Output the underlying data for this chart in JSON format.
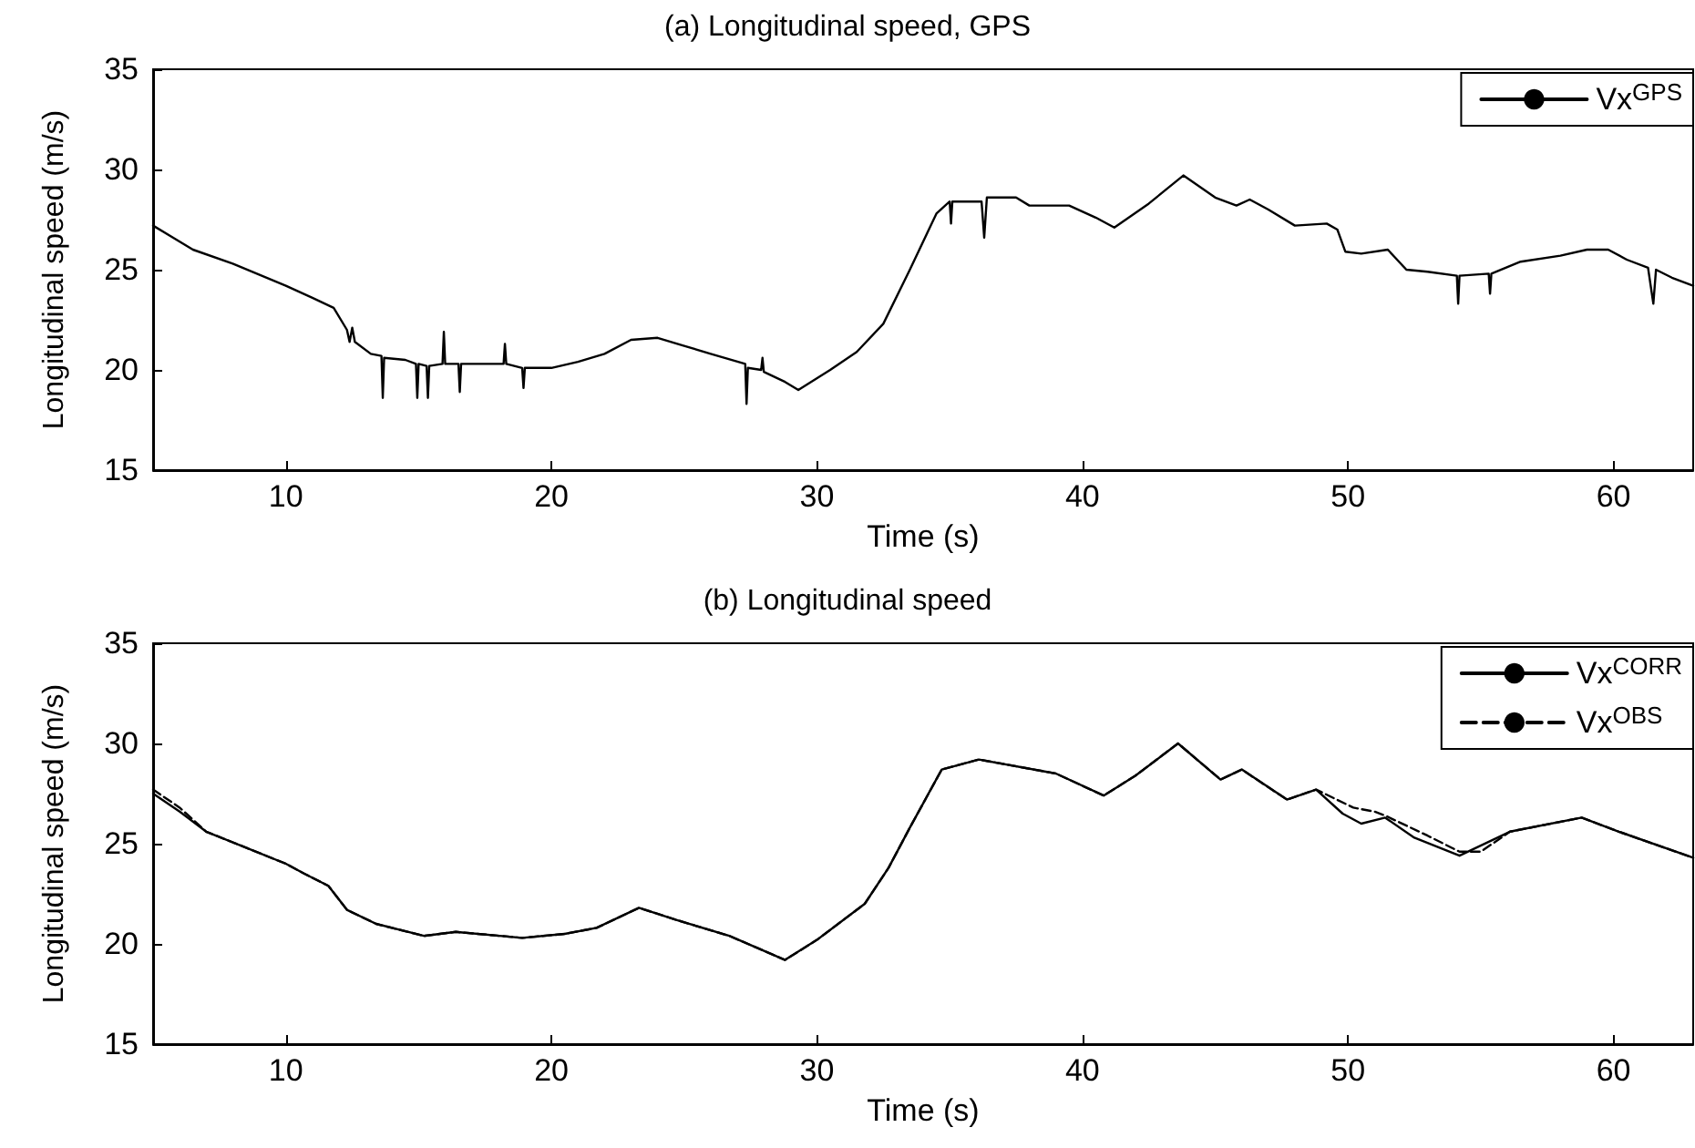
{
  "chart_data": [
    {
      "type": "line",
      "title": "(a) Longitudinal speed, GPS",
      "xlabel": "Time (s)",
      "ylabel": "Longitudinal speed (m/s)",
      "xlim": [
        5,
        63
      ],
      "xticks": [
        10,
        20,
        30,
        40,
        50,
        60
      ],
      "ylim": [
        15,
        35
      ],
      "yticks": [
        15,
        20,
        25,
        30,
        35
      ],
      "grid": false,
      "legend": "top right",
      "marker": "none",
      "series": [
        {
          "name": "Vx$^{GPS}$",
          "color": "#000000",
          "line_style": "solid",
          "x": [
            5.0,
            6.5,
            8,
            10,
            11,
            11.8,
            12.3,
            12.4,
            12.5,
            12.6,
            13.2,
            13.6,
            13.65,
            13.7,
            14.5,
            14.9,
            14.95,
            15.0,
            15.3,
            15.35,
            15.4,
            15.9,
            15.95,
            16.0,
            16.5,
            16.55,
            16.6,
            18.2,
            18.25,
            18.3,
            18.9,
            18.95,
            19.0,
            20,
            21,
            22,
            23,
            24,
            25,
            26,
            27.3,
            27.35,
            27.4,
            27.9,
            27.95,
            28.0,
            28.8,
            29.3,
            30.5,
            31.5,
            32.5,
            33.5,
            34.5,
            35.0,
            35.05,
            35.1,
            36.2,
            36.3,
            36.4,
            37.5,
            38,
            39.5,
            40.5,
            41.2,
            42.5,
            43.8,
            45,
            45.8,
            46.3,
            47,
            48,
            49.2,
            49.6,
            49.9,
            50.5,
            51.5,
            52.2,
            53,
            54.1,
            54.15,
            54.2,
            55.3,
            55.35,
            55.4,
            56.5,
            58,
            59,
            59.8,
            60.5,
            61.3,
            61.5,
            61.6,
            62.2,
            63.0
          ],
          "values": [
            27.2,
            26.0,
            25.3,
            24.2,
            23.6,
            23.1,
            22.0,
            21.4,
            22.1,
            21.4,
            20.8,
            20.7,
            18.6,
            20.6,
            20.5,
            20.3,
            18.6,
            20.3,
            20.2,
            18.6,
            20.2,
            20.3,
            21.9,
            20.3,
            20.3,
            18.9,
            20.3,
            20.3,
            21.3,
            20.3,
            20.1,
            19.1,
            20.1,
            20.1,
            20.4,
            20.8,
            21.5,
            21.6,
            21.2,
            20.8,
            20.3,
            18.3,
            20.1,
            20.0,
            20.6,
            19.9,
            19.4,
            19.0,
            20.0,
            20.9,
            22.3,
            25.0,
            27.8,
            28.4,
            27.3,
            28.4,
            28.4,
            26.6,
            28.6,
            28.6,
            28.2,
            28.2,
            27.6,
            27.1,
            28.3,
            29.7,
            28.6,
            28.2,
            28.5,
            28.0,
            27.2,
            27.3,
            27.0,
            25.9,
            25.8,
            26.0,
            25.0,
            24.9,
            24.7,
            23.3,
            24.7,
            24.8,
            23.8,
            24.8,
            25.4,
            25.7,
            26.0,
            26.0,
            25.5,
            25.1,
            23.3,
            25.0,
            24.6,
            24.2
          ]
        }
      ]
    },
    {
      "type": "line",
      "title": "(b) Longitudinal speed",
      "xlabel": "Time (s)",
      "ylabel": "Longitudinal speed (m/s)",
      "xlim": [
        5,
        63
      ],
      "xticks": [
        10,
        20,
        30,
        40,
        50,
        60
      ],
      "ylim": [
        15,
        35
      ],
      "yticks": [
        15,
        20,
        25,
        30,
        35
      ],
      "grid": false,
      "legend": "top right",
      "marker": "none",
      "series": [
        {
          "name": "Vx$^{CORR}$",
          "color": "#000000",
          "line_style": "solid",
          "x": [
            5,
            6,
            7,
            8.5,
            10,
            10.7,
            11.6,
            12.3,
            13.4,
            15.2,
            16.4,
            18.9,
            20.5,
            21.7,
            23.3,
            24.7,
            26.7,
            28.8,
            30.0,
            31.8,
            32.7,
            33.5,
            34.7,
            36.1,
            39.0,
            40.8,
            42.0,
            43.6,
            45.2,
            46.0,
            47.7,
            48.8,
            49.8,
            50.5,
            51.4,
            52.5,
            54.2,
            56.1,
            58.8,
            60.2,
            63.0
          ],
          "values": [
            27.5,
            26.6,
            25.6,
            24.8,
            24.0,
            23.5,
            22.9,
            21.7,
            21.0,
            20.4,
            20.6,
            20.3,
            20.5,
            20.8,
            21.8,
            21.2,
            20.4,
            19.2,
            20.2,
            22.0,
            23.8,
            25.8,
            28.7,
            29.2,
            28.5,
            27.4,
            28.4,
            30.0,
            28.2,
            28.7,
            27.2,
            27.7,
            26.5,
            26.0,
            26.3,
            25.3,
            24.4,
            25.6,
            26.3,
            25.6,
            24.3
          ]
        },
        {
          "name": "Vx$^{OBS}$",
          "color": "#000000",
          "line_style": "dashed",
          "x": [
            5,
            6,
            7,
            8.5,
            10,
            10.7,
            11.6,
            12.3,
            13.4,
            15.2,
            16.4,
            18.9,
            20.5,
            21.7,
            23.3,
            24.7,
            26.7,
            28.8,
            30.0,
            31.8,
            32.7,
            33.5,
            34.7,
            36.1,
            39.0,
            40.8,
            42.0,
            43.6,
            45.2,
            46.0,
            47.7,
            48.8,
            50.2,
            51.0,
            51.4,
            53.0,
            54.2,
            55.0,
            56.1,
            58.8,
            60.2,
            63.0
          ],
          "values": [
            27.7,
            26.8,
            25.6,
            24.8,
            24.0,
            23.5,
            22.9,
            21.7,
            21.0,
            20.4,
            20.6,
            20.3,
            20.5,
            20.8,
            21.8,
            21.2,
            20.4,
            19.2,
            20.2,
            22.0,
            23.8,
            25.8,
            28.7,
            29.2,
            28.5,
            27.4,
            28.4,
            30.0,
            28.2,
            28.7,
            27.2,
            27.7,
            26.8,
            26.6,
            26.4,
            25.4,
            24.6,
            24.6,
            25.6,
            26.3,
            25.6,
            24.3
          ]
        }
      ]
    }
  ]
}
